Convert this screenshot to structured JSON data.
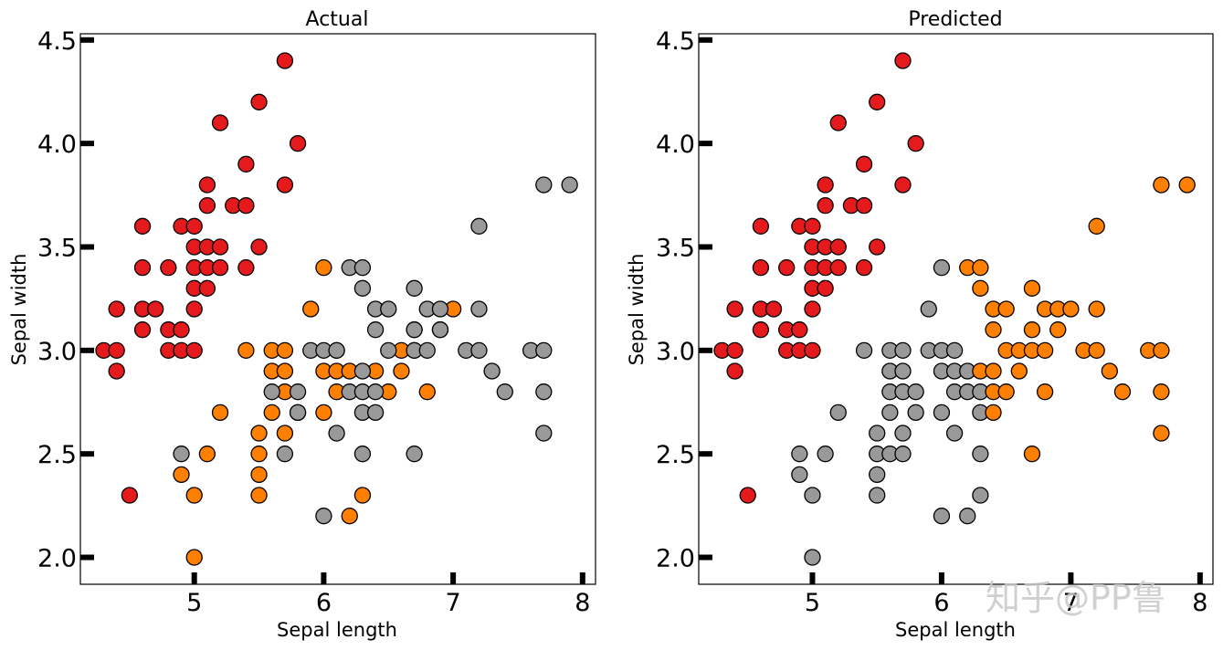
{
  "chart_data": [
    {
      "type": "scatter",
      "title": "Actual",
      "xlabel": "Sepal length",
      "ylabel": "Sepal width",
      "xlim": [
        4.12,
        8.1
      ],
      "ylim": [
        1.87,
        4.53
      ],
      "xticks": [
        5,
        6,
        7,
        8
      ],
      "yticks": [
        2.0,
        2.5,
        3.0,
        3.5,
        4.0,
        4.5
      ],
      "xtick_labels": [
        "5",
        "6",
        "7",
        "8"
      ],
      "ytick_labels": [
        "2.0",
        "2.5",
        "3.0",
        "3.5",
        "4.0",
        "4.5"
      ],
      "grid": false,
      "legend": "none",
      "series": [
        {
          "color": "#e41a1c",
          "points": [
            [
              4.3,
              3.0
            ],
            [
              4.4,
              3.0
            ],
            [
              4.4,
              3.2
            ],
            [
              4.4,
              2.9
            ],
            [
              4.5,
              2.3
            ],
            [
              4.6,
              3.6
            ],
            [
              4.6,
              3.4
            ],
            [
              4.6,
              3.2
            ],
            [
              4.6,
              3.1
            ],
            [
              4.7,
              3.2
            ],
            [
              4.8,
              3.4
            ],
            [
              4.8,
              3.1
            ],
            [
              4.8,
              3.0
            ],
            [
              4.9,
              3.6
            ],
            [
              4.9,
              3.1
            ],
            [
              4.9,
              3.0
            ],
            [
              5.0,
              3.6
            ],
            [
              5.0,
              3.5
            ],
            [
              5.0,
              3.4
            ],
            [
              5.0,
              3.3
            ],
            [
              5.0,
              3.2
            ],
            [
              5.0,
              3.0
            ],
            [
              5.1,
              3.8
            ],
            [
              5.1,
              3.7
            ],
            [
              5.1,
              3.5
            ],
            [
              5.1,
              3.4
            ],
            [
              5.1,
              3.3
            ],
            [
              5.2,
              4.1
            ],
            [
              5.2,
              3.5
            ],
            [
              5.2,
              3.4
            ],
            [
              5.3,
              3.7
            ],
            [
              5.4,
              3.9
            ],
            [
              5.4,
              3.7
            ],
            [
              5.4,
              3.4
            ],
            [
              5.5,
              4.2
            ],
            [
              5.5,
              3.5
            ],
            [
              5.7,
              4.4
            ],
            [
              5.7,
              3.8
            ],
            [
              5.8,
              4.0
            ]
          ]
        },
        {
          "color": "#ff7f00",
          "points": [
            [
              4.9,
              2.4
            ],
            [
              5.0,
              2.3
            ],
            [
              5.0,
              2.0
            ],
            [
              5.1,
              2.5
            ],
            [
              5.2,
              2.7
            ],
            [
              5.4,
              3.0
            ],
            [
              5.5,
              2.6
            ],
            [
              5.5,
              2.5
            ],
            [
              5.5,
              2.4
            ],
            [
              5.5,
              2.3
            ],
            [
              5.6,
              3.0
            ],
            [
              5.6,
              2.9
            ],
            [
              5.6,
              2.7
            ],
            [
              5.7,
              3.0
            ],
            [
              5.7,
              2.9
            ],
            [
              5.7,
              2.8
            ],
            [
              5.7,
              2.6
            ],
            [
              5.8,
              2.7
            ],
            [
              5.9,
              3.2
            ],
            [
              6.0,
              3.4
            ],
            [
              6.0,
              2.9
            ],
            [
              6.0,
              2.7
            ],
            [
              6.1,
              3.0
            ],
            [
              6.1,
              2.9
            ],
            [
              6.1,
              2.8
            ],
            [
              6.2,
              2.9
            ],
            [
              6.2,
              2.2
            ],
            [
              6.3,
              2.3
            ],
            [
              6.4,
              2.9
            ],
            [
              6.5,
              2.8
            ],
            [
              6.6,
              3.0
            ],
            [
              6.6,
              2.9
            ],
            [
              6.7,
              3.0
            ],
            [
              6.7,
              3.1
            ],
            [
              6.8,
              2.8
            ],
            [
              6.9,
              3.1
            ],
            [
              7.0,
              3.2
            ]
          ]
        },
        {
          "color": "#999999",
          "points": [
            [
              4.9,
              2.5
            ],
            [
              5.6,
              2.8
            ],
            [
              5.7,
              2.5
            ],
            [
              5.8,
              2.8
            ],
            [
              5.8,
              2.7
            ],
            [
              5.9,
              3.0
            ],
            [
              6.0,
              3.0
            ],
            [
              6.0,
              2.2
            ],
            [
              6.1,
              3.0
            ],
            [
              6.1,
              2.6
            ],
            [
              6.2,
              3.4
            ],
            [
              6.2,
              2.8
            ],
            [
              6.3,
              3.4
            ],
            [
              6.3,
              3.3
            ],
            [
              6.3,
              2.9
            ],
            [
              6.3,
              2.8
            ],
            [
              6.3,
              2.7
            ],
            [
              6.3,
              2.5
            ],
            [
              6.4,
              3.2
            ],
            [
              6.4,
              3.1
            ],
            [
              6.4,
              2.8
            ],
            [
              6.4,
              2.7
            ],
            [
              6.5,
              3.2
            ],
            [
              6.5,
              3.0
            ],
            [
              6.7,
              3.3
            ],
            [
              6.7,
              3.1
            ],
            [
              6.7,
              3.0
            ],
            [
              6.7,
              2.5
            ],
            [
              6.8,
              3.2
            ],
            [
              6.8,
              3.0
            ],
            [
              6.9,
              3.2
            ],
            [
              6.9,
              3.1
            ],
            [
              7.1,
              3.0
            ],
            [
              7.2,
              3.6
            ],
            [
              7.2,
              3.2
            ],
            [
              7.2,
              3.0
            ],
            [
              7.3,
              2.9
            ],
            [
              7.4,
              2.8
            ],
            [
              7.6,
              3.0
            ],
            [
              7.7,
              3.8
            ],
            [
              7.7,
              3.0
            ],
            [
              7.7,
              2.8
            ],
            [
              7.7,
              2.6
            ],
            [
              7.9,
              3.8
            ]
          ]
        }
      ]
    },
    {
      "type": "scatter",
      "title": "Predicted",
      "xlabel": "Sepal length",
      "ylabel": "Sepal width",
      "xlim": [
        4.12,
        8.1
      ],
      "ylim": [
        1.87,
        4.53
      ],
      "xticks": [
        5,
        6,
        7,
        8
      ],
      "yticks": [
        2.0,
        2.5,
        3.0,
        3.5,
        4.0,
        4.5
      ],
      "xtick_labels": [
        "5",
        "6",
        "7",
        "8"
      ],
      "ytick_labels": [
        "2.0",
        "2.5",
        "3.0",
        "3.5",
        "4.0",
        "4.5"
      ],
      "grid": false,
      "legend": "none",
      "series": [
        {
          "color": "#e41a1c",
          "points": [
            [
              4.3,
              3.0
            ],
            [
              4.4,
              3.0
            ],
            [
              4.4,
              3.2
            ],
            [
              4.4,
              2.9
            ],
            [
              4.5,
              2.3
            ],
            [
              4.6,
              3.6
            ],
            [
              4.6,
              3.4
            ],
            [
              4.6,
              3.2
            ],
            [
              4.6,
              3.1
            ],
            [
              4.7,
              3.2
            ],
            [
              4.8,
              3.4
            ],
            [
              4.8,
              3.1
            ],
            [
              4.8,
              3.0
            ],
            [
              4.9,
              3.6
            ],
            [
              4.9,
              3.1
            ],
            [
              4.9,
              3.0
            ],
            [
              5.0,
              3.6
            ],
            [
              5.0,
              3.5
            ],
            [
              5.0,
              3.4
            ],
            [
              5.0,
              3.3
            ],
            [
              5.0,
              3.2
            ],
            [
              5.0,
              3.0
            ],
            [
              5.1,
              3.8
            ],
            [
              5.1,
              3.7
            ],
            [
              5.1,
              3.5
            ],
            [
              5.1,
              3.4
            ],
            [
              5.1,
              3.3
            ],
            [
              5.2,
              4.1
            ],
            [
              5.2,
              3.5
            ],
            [
              5.2,
              3.4
            ],
            [
              5.3,
              3.7
            ],
            [
              5.4,
              3.9
            ],
            [
              5.4,
              3.7
            ],
            [
              5.4,
              3.4
            ],
            [
              5.5,
              4.2
            ],
            [
              5.5,
              3.5
            ],
            [
              5.7,
              4.4
            ],
            [
              5.7,
              3.8
            ],
            [
              5.8,
              4.0
            ]
          ]
        },
        {
          "color": "#999999",
          "points": [
            [
              4.9,
              2.5
            ],
            [
              4.9,
              2.4
            ],
            [
              5.0,
              2.3
            ],
            [
              5.0,
              2.0
            ],
            [
              5.1,
              2.5
            ],
            [
              5.2,
              2.7
            ],
            [
              5.4,
              3.0
            ],
            [
              5.5,
              2.6
            ],
            [
              5.5,
              2.5
            ],
            [
              5.5,
              2.4
            ],
            [
              5.5,
              2.3
            ],
            [
              5.6,
              3.0
            ],
            [
              5.6,
              2.9
            ],
            [
              5.6,
              2.8
            ],
            [
              5.6,
              2.7
            ],
            [
              5.6,
              2.5
            ],
            [
              5.7,
              3.0
            ],
            [
              5.7,
              2.9
            ],
            [
              5.7,
              2.8
            ],
            [
              5.7,
              2.6
            ],
            [
              5.7,
              2.5
            ],
            [
              5.8,
              2.8
            ],
            [
              5.8,
              2.7
            ],
            [
              5.9,
              3.2
            ],
            [
              5.9,
              3.0
            ],
            [
              6.0,
              3.4
            ],
            [
              6.0,
              3.0
            ],
            [
              6.0,
              2.9
            ],
            [
              6.0,
              2.7
            ],
            [
              6.0,
              2.2
            ],
            [
              6.1,
              3.0
            ],
            [
              6.1,
              2.9
            ],
            [
              6.1,
              2.8
            ],
            [
              6.1,
              2.6
            ],
            [
              6.2,
              2.9
            ],
            [
              6.2,
              2.8
            ],
            [
              6.2,
              2.2
            ],
            [
              6.3,
              2.8
            ],
            [
              6.3,
              2.7
            ],
            [
              6.3,
              2.5
            ],
            [
              6.3,
              2.3
            ]
          ]
        },
        {
          "color": "#ff7f00",
          "points": [
            [
              6.2,
              3.4
            ],
            [
              6.3,
              3.4
            ],
            [
              6.3,
              3.3
            ],
            [
              6.3,
              2.9
            ],
            [
              6.4,
              3.2
            ],
            [
              6.4,
              3.1
            ],
            [
              6.4,
              2.9
            ],
            [
              6.4,
              2.8
            ],
            [
              6.4,
              2.7
            ],
            [
              6.5,
              3.2
            ],
            [
              6.5,
              3.0
            ],
            [
              6.5,
              2.8
            ],
            [
              6.6,
              3.0
            ],
            [
              6.6,
              2.9
            ],
            [
              6.7,
              3.3
            ],
            [
              6.7,
              3.1
            ],
            [
              6.7,
              3.0
            ],
            [
              6.7,
              2.5
            ],
            [
              6.8,
              3.2
            ],
            [
              6.8,
              3.0
            ],
            [
              6.8,
              2.8
            ],
            [
              6.9,
              3.2
            ],
            [
              6.9,
              3.1
            ],
            [
              7.0,
              3.2
            ],
            [
              7.1,
              3.0
            ],
            [
              7.2,
              3.6
            ],
            [
              7.2,
              3.2
            ],
            [
              7.2,
              3.0
            ],
            [
              7.3,
              2.9
            ],
            [
              7.4,
              2.8
            ],
            [
              7.6,
              3.0
            ],
            [
              7.7,
              3.8
            ],
            [
              7.7,
              3.0
            ],
            [
              7.7,
              2.8
            ],
            [
              7.7,
              2.6
            ],
            [
              7.9,
              3.8
            ]
          ]
        }
      ]
    }
  ],
  "watermark": "知乎@PP鲁"
}
